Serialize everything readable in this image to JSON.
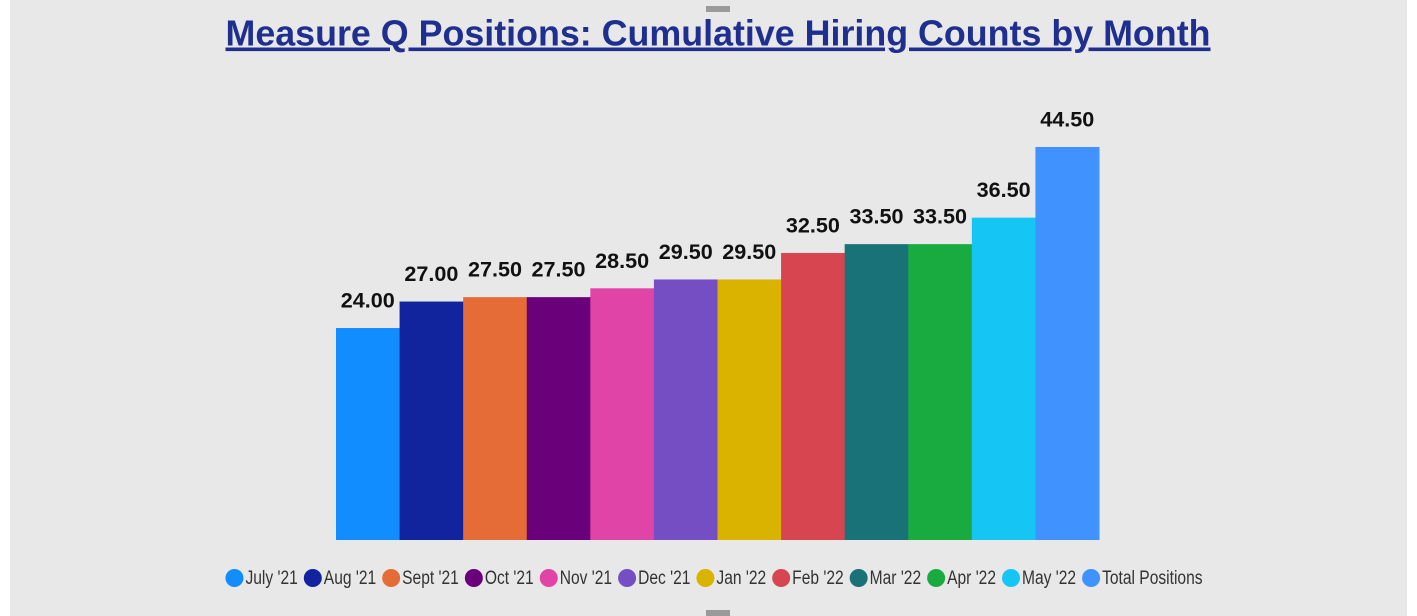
{
  "chart_data": {
    "type": "bar",
    "title": "Measure Q Positions: Cumulative Hiring Counts by Month",
    "categories": [
      "July '21",
      "Aug '21",
      "Sept '21",
      "Oct '21",
      "Nov '21",
      "Dec '21",
      "Jan '22",
      "Feb '22",
      "Mar '22",
      "Apr '22",
      "May '22",
      "Total Positions"
    ],
    "values": [
      24,
      27,
      27.5,
      27.5,
      28.5,
      29.5,
      29.5,
      32.5,
      33.5,
      33.5,
      36.5,
      44.5
    ],
    "value_labels": [
      "24.00",
      "27.00",
      "27.50",
      "27.50",
      "28.50",
      "29.50",
      "29.50",
      "32.50",
      "33.50",
      "33.50",
      "36.50",
      "44.50"
    ],
    "colors": [
      "#118dff",
      "#12239e",
      "#e66c37",
      "#6b007b",
      "#e044a7",
      "#744ec2",
      "#d9b300",
      "#d64550",
      "#197278",
      "#1aab40",
      "#15c6f4",
      "#4092ff"
    ],
    "legend": "bottom"
  }
}
